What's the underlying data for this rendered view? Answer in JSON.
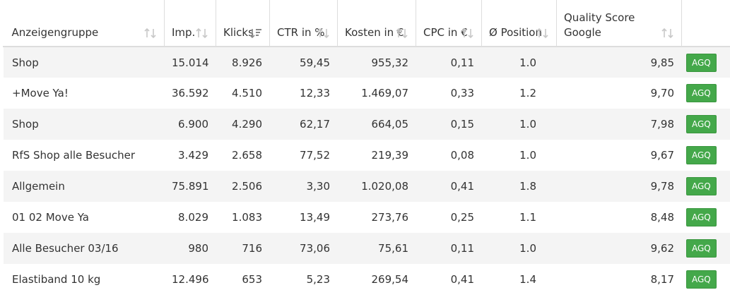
{
  "columns": [
    {
      "label": "Anzeigengruppe",
      "sort": "none"
    },
    {
      "label": "Imp.",
      "sort": "none"
    },
    {
      "label": "Klicks",
      "sort": "desc"
    },
    {
      "label": "CTR in %",
      "sort": "none"
    },
    {
      "label": "Kosten in €",
      "sort": "none"
    },
    {
      "label": "CPC in €",
      "sort": "none"
    },
    {
      "label": "Ø Position",
      "sort": "none"
    },
    {
      "label": "Quality Score Google",
      "sort": "none"
    },
    {
      "label": "",
      "sort": "none"
    }
  ],
  "action_label": "AGQ",
  "rows": [
    {
      "group": "Shop",
      "imp": "15.014",
      "klicks": "8.926",
      "ctr": "59,45",
      "kosten": "955,32",
      "cpc": "0,11",
      "position": "1.0",
      "qs": "9,85"
    },
    {
      "group": "+Move Ya!",
      "imp": "36.592",
      "klicks": "4.510",
      "ctr": "12,33",
      "kosten": "1.469,07",
      "cpc": "0,33",
      "position": "1.2",
      "qs": "9,70"
    },
    {
      "group": "Shop",
      "imp": "6.900",
      "klicks": "4.290",
      "ctr": "62,17",
      "kosten": "664,05",
      "cpc": "0,15",
      "position": "1.0",
      "qs": "7,98"
    },
    {
      "group": "RfS Shop alle Besucher",
      "imp": "3.429",
      "klicks": "2.658",
      "ctr": "77,52",
      "kosten": "219,39",
      "cpc": "0,08",
      "position": "1.0",
      "qs": "9,67"
    },
    {
      "group": "Allgemein",
      "imp": "75.891",
      "klicks": "2.506",
      "ctr": "3,30",
      "kosten": "1.020,08",
      "cpc": "0,41",
      "position": "1.8",
      "qs": "9,78"
    },
    {
      "group": "01 02 Move Ya",
      "imp": "8.029",
      "klicks": "1.083",
      "ctr": "13,49",
      "kosten": "273,76",
      "cpc": "0,25",
      "position": "1.1",
      "qs": "8,48"
    },
    {
      "group": "Alle Besucher 03/16",
      "imp": "980",
      "klicks": "716",
      "ctr": "73,06",
      "kosten": "75,61",
      "cpc": "0,11",
      "position": "1.0",
      "qs": "9,62"
    },
    {
      "group": "Elastiband 10 kg",
      "imp": "12.496",
      "klicks": "653",
      "ctr": "5,23",
      "kosten": "269,54",
      "cpc": "0,41",
      "position": "1.4",
      "qs": "8,17"
    }
  ]
}
